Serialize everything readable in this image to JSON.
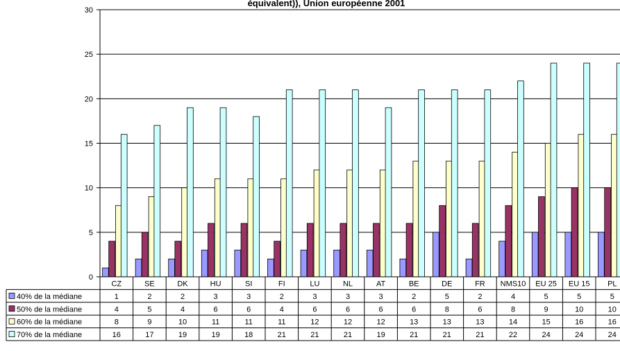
{
  "chart_data": {
    "type": "bar",
    "title": "équivalent)), Union européenne 2001",
    "categories": [
      "CZ",
      "SE",
      "DK",
      "HU",
      "SI",
      "FI",
      "LU",
      "NL",
      "AT",
      "BE",
      "DE",
      "FR",
      "NMS10",
      "EU 25",
      "EU 15",
      "PL"
    ],
    "series": [
      {
        "name": "40% de la médiane",
        "color": "#9999ff",
        "values": [
          1,
          2,
          2,
          3,
          3,
          2,
          3,
          3,
          3,
          2,
          5,
          2,
          4,
          5,
          5,
          5
        ]
      },
      {
        "name": "50% de la médiane",
        "color": "#993366",
        "values": [
          4,
          5,
          4,
          6,
          6,
          4,
          6,
          6,
          6,
          6,
          8,
          6,
          8,
          9,
          10,
          10
        ]
      },
      {
        "name": "60% de la médiane",
        "color": "#ffffcc",
        "values": [
          8,
          9,
          10,
          11,
          11,
          11,
          12,
          12,
          12,
          13,
          13,
          13,
          14,
          15,
          16,
          16
        ]
      },
      {
        "name": "70% de la médiane",
        "color": "#ccffff",
        "values": [
          16,
          17,
          19,
          19,
          18,
          21,
          21,
          21,
          19,
          21,
          21,
          21,
          22,
          24,
          24,
          24
        ]
      }
    ],
    "ylim": [
      0,
      30
    ],
    "yticks": [
      0,
      5,
      10,
      15,
      20,
      25,
      30
    ],
    "grid": true,
    "legend": "data-table-left"
  }
}
